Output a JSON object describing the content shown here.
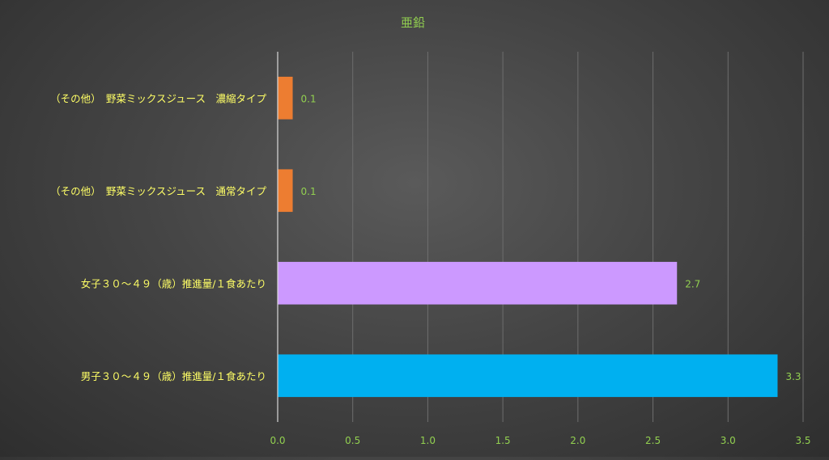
{
  "chart_data": {
    "type": "bar",
    "orientation": "horizontal",
    "title": "亜鉛",
    "xlabel": "",
    "ylabel": "",
    "xlim": [
      0,
      3.5
    ],
    "x_ticks": [
      "0.0",
      "0.5",
      "1.0",
      "1.5",
      "2.0",
      "2.5",
      "3.0",
      "3.5"
    ],
    "grid": true,
    "legend": "none",
    "categories": [
      "（その他）　野菜ミックスジュース　濃縮タイプ",
      "（その他）　野菜ミックスジュース　通常タイプ",
      "女子３０～４９（歳）推進量/１食あたり",
      "男子３０～４９（歳）推進量/１食あたり"
    ],
    "values": [
      0.1,
      0.1,
      2.66,
      3.33
    ],
    "data_labels": [
      "0.1",
      "0.1",
      "2.7",
      "3.3"
    ],
    "bar_colors": [
      "#ED7D31",
      "#ED7D31",
      "#CC99FF",
      "#00B0F0"
    ],
    "colors": {
      "title": "#92D050",
      "category_label": "#FFFF66",
      "tick_label": "#92D050",
      "data_label": "#92D050",
      "gridline": "#6e6e6e",
      "axis": "#d9d9d9"
    }
  }
}
